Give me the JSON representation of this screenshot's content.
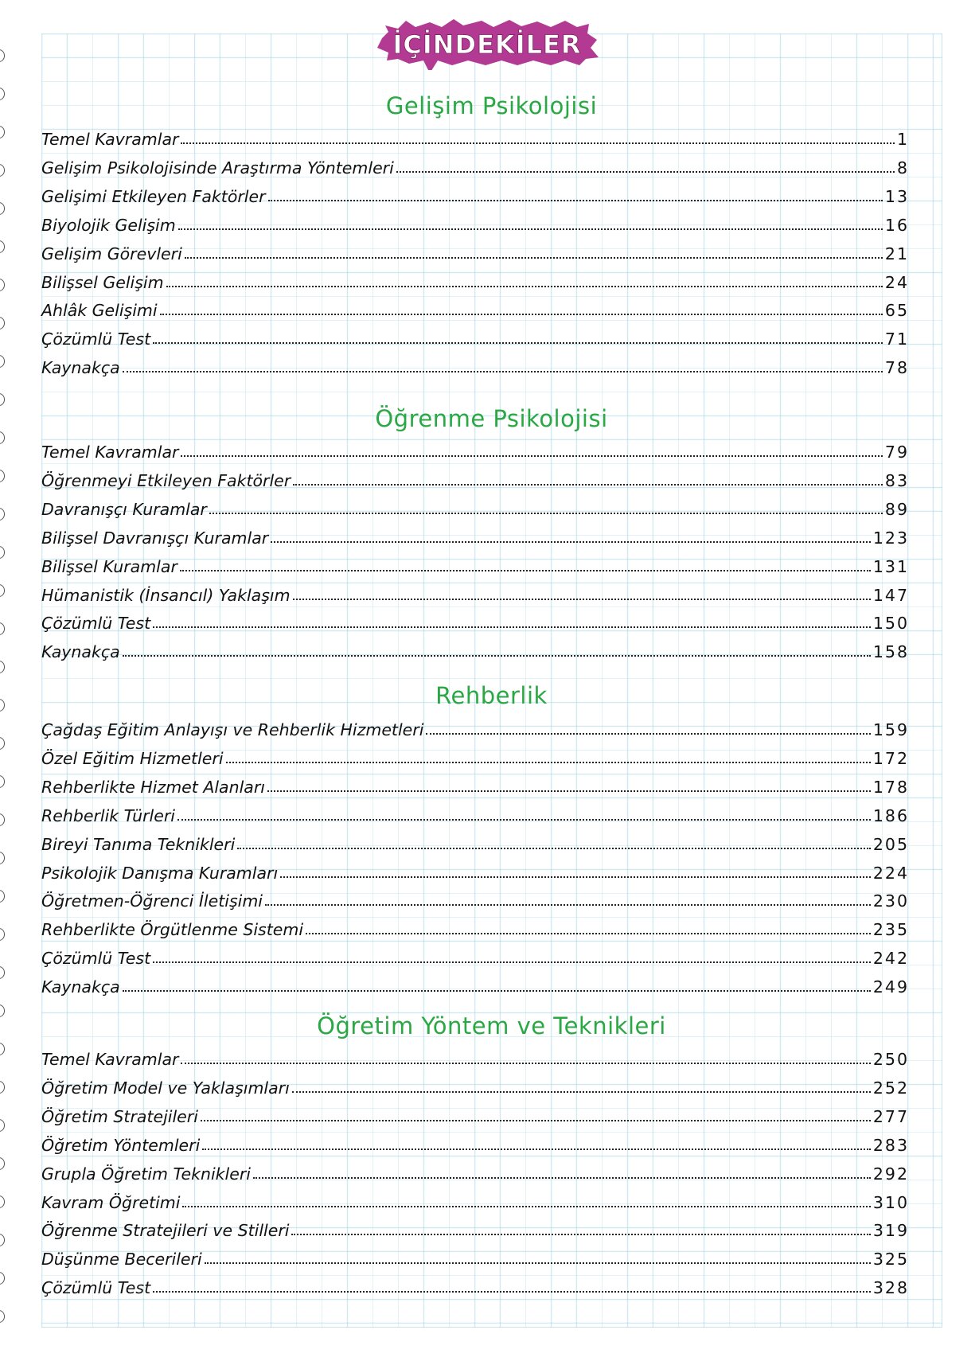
{
  "title": "İÇİNDEKİLER",
  "colors": {
    "title_badge": "#b23a92",
    "heading": "#2aa844",
    "grid": "#aad7e6"
  },
  "sections": [
    {
      "heading": "Gelişim Psikolojisi",
      "entries": [
        {
          "title": "Temel Kavramlar",
          "page": "1"
        },
        {
          "title": "Gelişim Psikolojisinde Araştırma Yöntemleri",
          "page": "8"
        },
        {
          "title": "Gelişimi Etkileyen Faktörler",
          "page": "13"
        },
        {
          "title": "Biyolojik Gelişim",
          "page": "16"
        },
        {
          "title": "Gelişim  Görevleri",
          "page": "21"
        },
        {
          "title": "Bilişsel Gelişim",
          "page": "24"
        },
        {
          "title": "Ahlâk Gelişimi",
          "page": "65"
        },
        {
          "title": "Çözümlü Test",
          "page": "71"
        },
        {
          "title": "Kaynakça",
          "page": "78"
        }
      ]
    },
    {
      "heading": "Öğrenme Psikolojisi",
      "entries": [
        {
          "title": "Temel Kavramlar",
          "page": "79"
        },
        {
          "title": "Öğrenmeyi Etkileyen Faktörler",
          "page": "83"
        },
        {
          "title": "Davranışçı Kuramlar",
          "page": "89"
        },
        {
          "title": "Bilişsel Davranışçı Kuramlar",
          "page": "123"
        },
        {
          "title": "Bilişsel Kuramlar",
          "page": "131"
        },
        {
          "title": "Hümanistik (İnsancıl) Yaklaşım",
          "page": "147"
        },
        {
          "title": "Çözümlü Test",
          "page": "150"
        },
        {
          "title": "Kaynakça",
          "page": "158"
        }
      ]
    },
    {
      "heading": "Rehberlik",
      "entries": [
        {
          "title": "Çağdaş Eğitim Anlayışı ve Rehberlik Hizmetleri",
          "page": "159"
        },
        {
          "title": "Özel Eğitim Hizmetleri",
          "page": "172"
        },
        {
          "title": "Rehberlikte Hizmet Alanları",
          "page": "178"
        },
        {
          "title": "Rehberlik Türleri",
          "page": "186"
        },
        {
          "title": "Bireyi Tanıma Teknikleri",
          "page": "205"
        },
        {
          "title": "Psikolojik Danışma Kuramları",
          "page": "224"
        },
        {
          "title": "Öğretmen-Öğrenci İletişimi",
          "page": "230"
        },
        {
          "title": "Rehberlikte Örgütlenme Sistemi",
          "page": "235"
        },
        {
          "title": "Çözümlü Test",
          "page": "242"
        },
        {
          "title": "Kaynakça",
          "page": "249"
        }
      ]
    },
    {
      "heading": "Öğretim Yöntem ve Teknikleri",
      "entries": [
        {
          "title": "Temel Kavramlar",
          "page": "250"
        },
        {
          "title": "Öğretim Model ve Yaklaşımları",
          "page": "252"
        },
        {
          "title": "Öğretim Stratejileri",
          "page": "277"
        },
        {
          "title": "Öğretim Yöntemleri",
          "page": "283"
        },
        {
          "title": "Grupla Öğretim Teknikleri",
          "page": "292"
        },
        {
          "title": "Kavram Öğretimi",
          "page": "310"
        },
        {
          "title": "Öğrenme Stratejileri ve Stilleri",
          "page": "319"
        },
        {
          "title": "Düşünme Becerileri",
          "page": "325"
        },
        {
          "title": "Çözümlü Test",
          "page": "328"
        }
      ]
    }
  ]
}
